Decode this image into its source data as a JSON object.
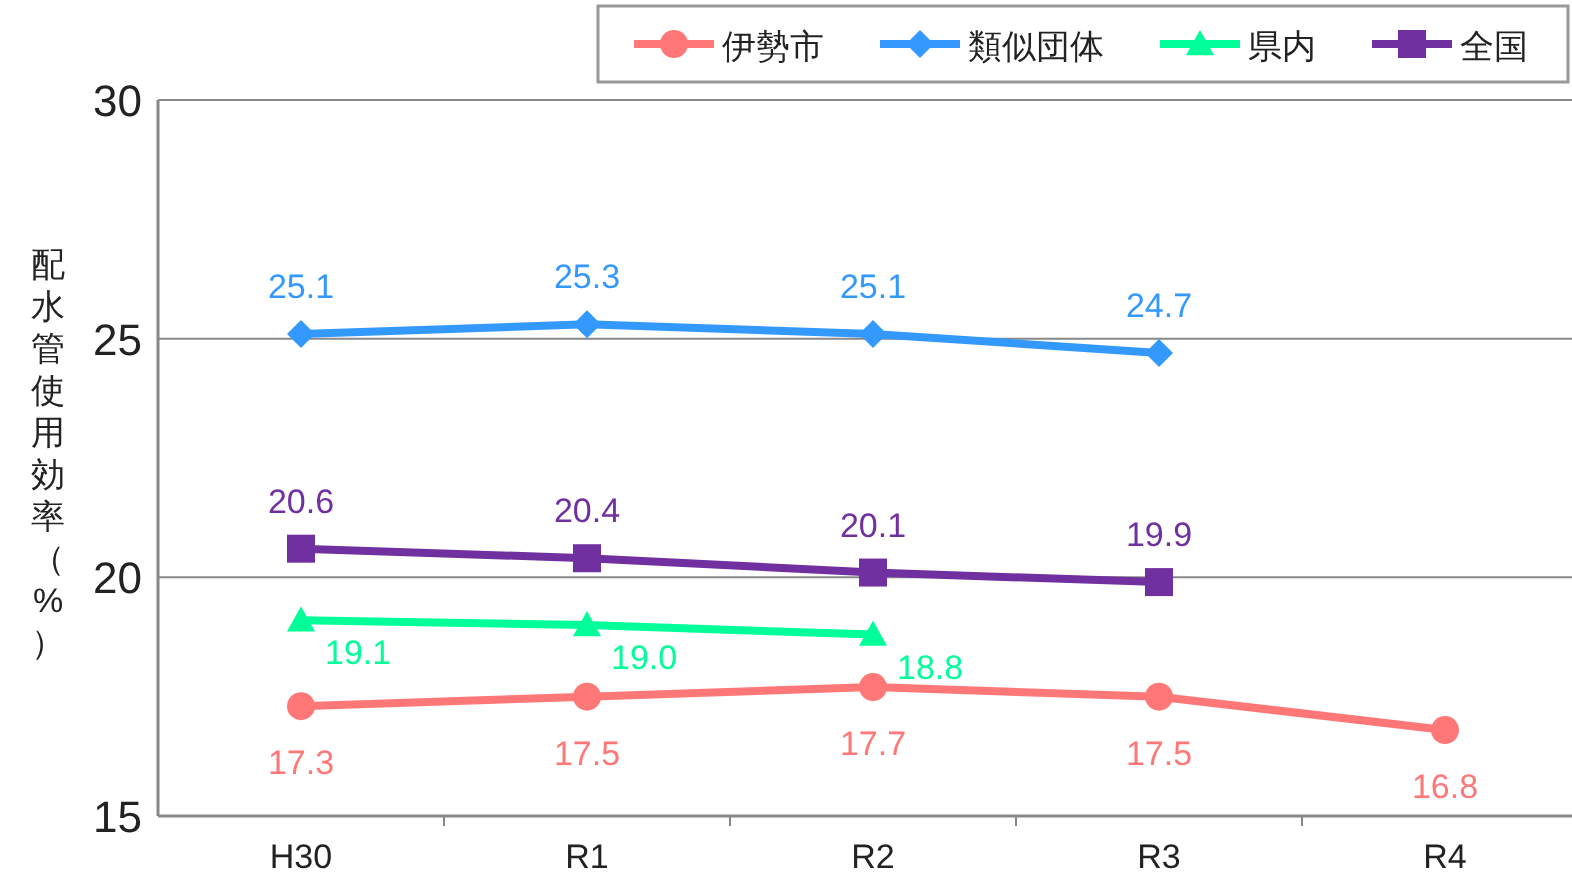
{
  "chart_data": {
    "type": "line",
    "ylabel": "配水管使用効率（%）",
    "categories": [
      "H30",
      "R1",
      "R2",
      "R3",
      "R4"
    ],
    "series": [
      {
        "name": "伊勢市",
        "color": "#ff7777",
        "marker": "circle",
        "values": [
          17.3,
          17.5,
          17.7,
          17.5,
          16.8
        ],
        "value_labels": [
          "17.3",
          "17.5",
          "17.7",
          "17.5",
          "16.8"
        ]
      },
      {
        "name": "類似団体",
        "color": "#3399ff",
        "marker": "diamond",
        "values": [
          25.1,
          25.3,
          25.1,
          24.7,
          null
        ],
        "value_labels": [
          "25.1",
          "25.3",
          "25.1",
          "24.7",
          null
        ]
      },
      {
        "name": "県内",
        "color": "#00ff99",
        "marker": "triangle",
        "values": [
          19.1,
          19.0,
          18.8,
          null,
          null
        ],
        "value_labels": [
          "19.1",
          "19.0",
          "18.8",
          null,
          null
        ]
      },
      {
        "name": "全国",
        "color": "#7030a0",
        "marker": "square",
        "values": [
          20.6,
          20.4,
          20.1,
          19.9,
          null
        ],
        "value_labels": [
          "20.6",
          "20.4",
          "20.1",
          "19.9",
          null
        ]
      }
    ],
    "ylim": [
      15,
      30
    ],
    "yticks": [
      15,
      20,
      25,
      30
    ],
    "grid": "y",
    "legend": "top right",
    "line_style": "solid"
  }
}
